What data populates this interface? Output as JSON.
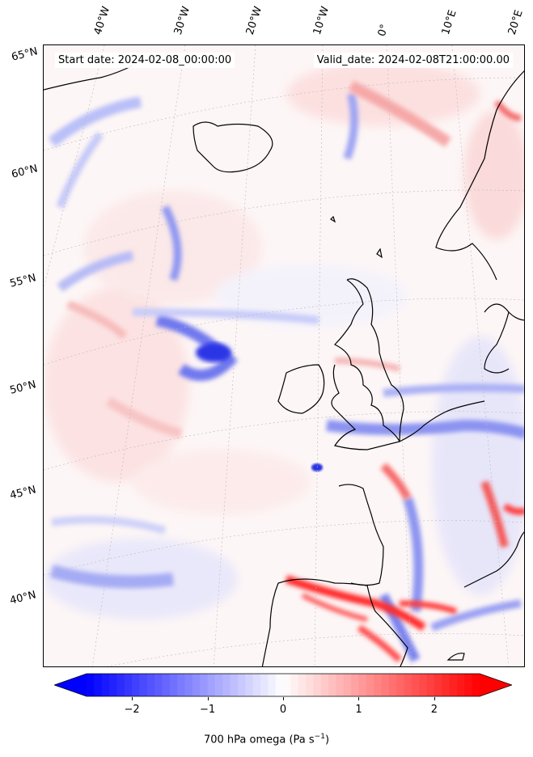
{
  "map": {
    "header_left": "Start date: 2024-02-08_00:00:00",
    "header_right": "Valid_date: 2024-02-08T21:00:00.00",
    "lon_labels": [
      "40°W",
      "30°W",
      "20°W",
      "10°W",
      "0°",
      "10°E",
      "20°E"
    ],
    "lat_labels": [
      "65°N",
      "60°N",
      "55°N",
      "50°N",
      "45°N",
      "40°N"
    ],
    "field_colors": {
      "negative": "#0000ff",
      "zero": "#ffffff",
      "positive": "#ff0000"
    },
    "coastline_color": "#000000"
  },
  "colorbar": {
    "label": "700 hPa omega (Pa s",
    "label_sup": "−1",
    "label_end": ")",
    "ticks": [
      "−2",
      "−1",
      "0",
      "1",
      "2"
    ],
    "range": [
      -2.6,
      2.6
    ],
    "tick_values": [
      -2,
      -1,
      0,
      1,
      2
    ],
    "extend": "both"
  }
}
